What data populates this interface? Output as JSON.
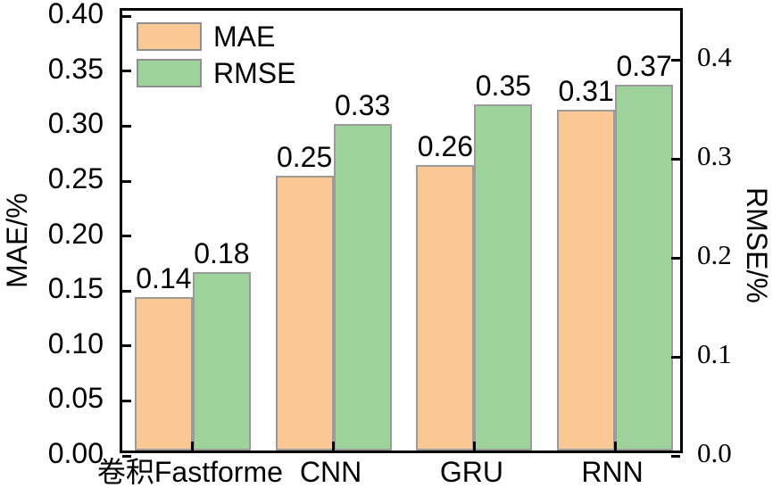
{
  "chart_data": {
    "type": "bar",
    "title": "",
    "categories": [
      "卷积Fastforme",
      "CNN",
      "GRU",
      "RNN"
    ],
    "series": [
      {
        "name": "MAE",
        "axis": "left",
        "color": "#FAC795",
        "values": [
          0.14,
          0.25,
          0.26,
          0.31
        ],
        "value_labels": [
          "0.14",
          "0.25",
          "0.26",
          "0.31"
        ]
      },
      {
        "name": "RMSE",
        "axis": "right",
        "color": "#9ED49B",
        "values": [
          0.18,
          0.33,
          0.35,
          0.37
        ],
        "value_labels": [
          "0.18",
          "0.33",
          "0.35",
          "0.37"
        ]
      }
    ],
    "axes": {
      "left": {
        "label": "MAE/%",
        "min": 0,
        "max": 0.405,
        "ticks": [
          0.4,
          0.35,
          0.3,
          0.25,
          0.2,
          0.15,
          0.1,
          0.05,
          0.0
        ],
        "tick_labels": [
          "0.40",
          "0.35",
          "0.30",
          "0.25",
          "0.20",
          "0.15",
          "0.10",
          "0.05",
          "0.00"
        ]
      },
      "right": {
        "label": "RMSE/%",
        "min": 0,
        "max": 0.45,
        "ticks": [
          0.4,
          0.3,
          0.2,
          0.1,
          0.0
        ],
        "tick_labels": [
          "0.4",
          "0.3",
          "0.2",
          "0.1",
          "0.0"
        ]
      }
    },
    "legend": {
      "position": "top-left-inside",
      "entries": [
        "MAE",
        "RMSE"
      ]
    },
    "grid": false,
    "colors": {
      "bar_edge": "#9b9b9b",
      "axis": "#000000",
      "text": "#000000",
      "background": "#ffffff"
    },
    "bar_label_position": "above-bar-center",
    "ticks_direction": "in"
  }
}
